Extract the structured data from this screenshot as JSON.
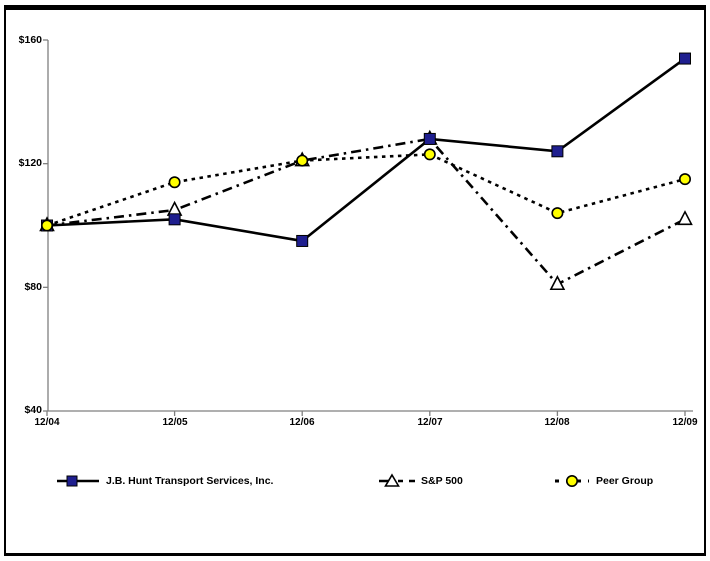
{
  "chart_data": {
    "type": "line",
    "title": "",
    "categories": [
      "12/04",
      "12/05",
      "12/06",
      "12/07",
      "12/08",
      "12/09"
    ],
    "y_tick_labels": [
      "$160",
      "$120",
      "$80",
      "$40"
    ],
    "y_tick_values": [
      160,
      120,
      80,
      40
    ],
    "ylim": [
      40,
      160
    ],
    "grid": false,
    "legend_position": "bottom",
    "axis_color": "#7f7f7f",
    "line_color": "#000000",
    "series": [
      {
        "name": "J.B. Hunt Transport Services, Inc.",
        "values": [
          100,
          102,
          95,
          128,
          124,
          154
        ],
        "line_style": "solid",
        "marker": "square",
        "marker_fill": "#1f1f8f",
        "marker_stroke": "#000000"
      },
      {
        "name": "S&P 500",
        "values": [
          100,
          105,
          121,
          128,
          81,
          102
        ],
        "line_style": "dashdot",
        "marker": "triangle",
        "marker_fill": "#ffffff",
        "marker_stroke": "#000000"
      },
      {
        "name": "Peer Group",
        "values": [
          100,
          114,
          121,
          123,
          104,
          115
        ],
        "line_style": "dotted",
        "marker": "circle",
        "marker_fill": "#ffff00",
        "marker_stroke": "#000000"
      }
    ]
  }
}
